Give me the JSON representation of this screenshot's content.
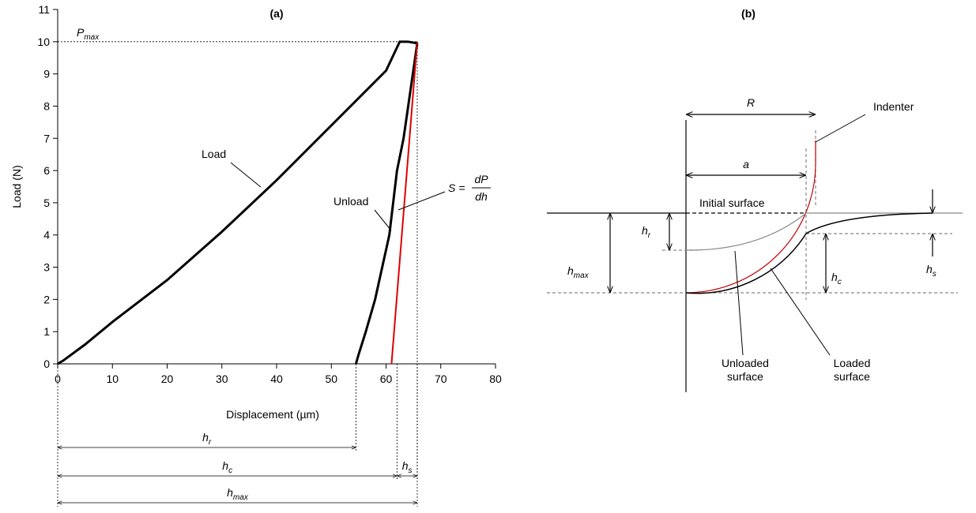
{
  "chart_data": {
    "type": "line",
    "title": "(a)",
    "x_label": "Displacement (µm)",
    "y_label": "Load (N)",
    "xlim": [
      0,
      80
    ],
    "xticks": [
      0,
      10,
      20,
      30,
      40,
      50,
      60,
      70,
      80
    ],
    "ylim": [
      0,
      11
    ],
    "yticks": [
      0,
      1,
      2,
      3,
      4,
      5,
      6,
      7,
      8,
      9,
      10,
      11
    ],
    "series": [
      {
        "name": "Load",
        "color": "#000000",
        "x": [
          0,
          1,
          5,
          10,
          20,
          30,
          40,
          50,
          60,
          62.5,
          64,
          65.7
        ],
        "values": [
          0,
          0.1,
          0.6,
          1.3,
          2.6,
          4.1,
          5.7,
          7.4,
          9.1,
          10,
          10,
          9.95
        ]
      },
      {
        "name": "Unload",
        "color": "#000000",
        "x": [
          65.7,
          63.2,
          62,
          60.6,
          58,
          56.3,
          55,
          54.5
        ],
        "values": [
          9.95,
          7,
          6,
          4,
          2,
          1,
          0.3,
          0
        ]
      }
    ],
    "tangent": {
      "color": "#e00000",
      "x": [
        61,
        65.7
      ],
      "values": [
        0,
        10
      ],
      "label": {
        "lhs": "S =",
        "numerator": "dP",
        "denominator": "dh"
      }
    },
    "pmax": {
      "label": {
        "symbol": "P",
        "subscript": "max"
      },
      "value": 10,
      "x": 65.7
    },
    "dimensions": [
      {
        "label": {
          "symbol": "h",
          "subscript": "r"
        },
        "from": 0,
        "to": 54.5
      },
      {
        "label": {
          "symbol": "h",
          "subscript": "c"
        },
        "from": 0,
        "to": 62
      },
      {
        "label": {
          "symbol": "h",
          "subscript": "s"
        },
        "from": 62,
        "to": 65.7
      },
      {
        "label": {
          "symbol": "h",
          "subscript": "max"
        },
        "from": 0,
        "to": 65.7
      }
    ]
  },
  "diagram": {
    "title": "(b)",
    "R": "R",
    "a": "a",
    "initial_surface": "Initial surface",
    "indenter": "Indenter",
    "h_r": {
      "symbol": "h",
      "subscript": "r"
    },
    "h_max": {
      "symbol": "h",
      "subscript": "max"
    },
    "h_c": {
      "symbol": "h",
      "subscript": "c"
    },
    "h_s": {
      "symbol": "h",
      "subscript": "s"
    },
    "unloaded_surface": [
      "Unloaded",
      "surface"
    ],
    "loaded_surface": [
      "Loaded",
      "surface"
    ]
  }
}
